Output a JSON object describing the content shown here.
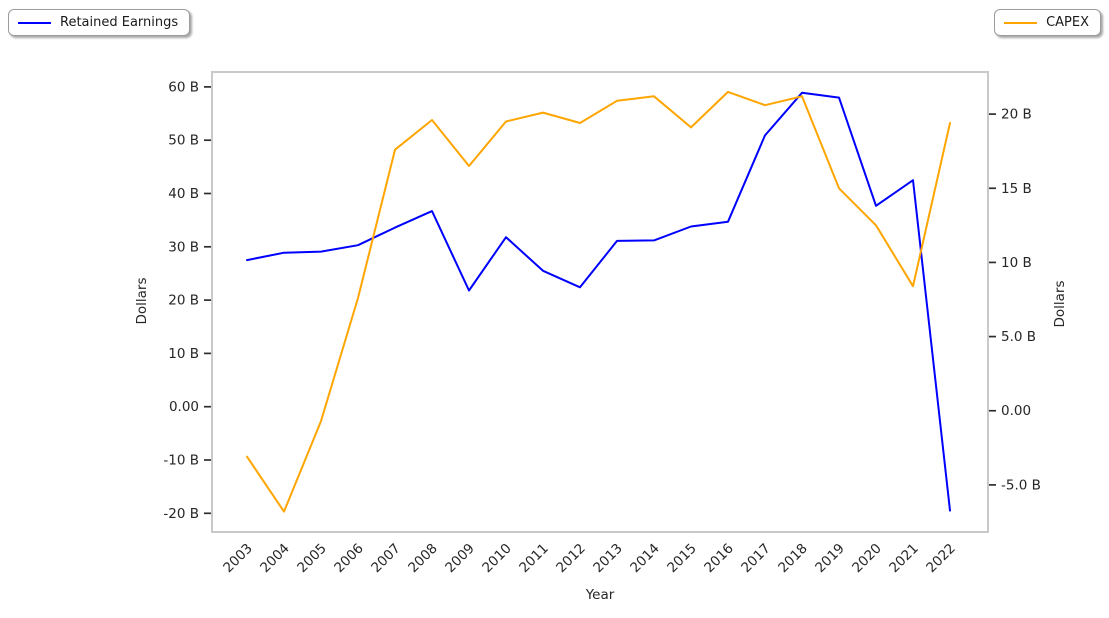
{
  "legend_left": {
    "label": "Retained Earnings",
    "color": "#0000ff"
  },
  "legend_right": {
    "label": "CAPEX",
    "color": "#ffa500"
  },
  "chart_data": {
    "type": "line",
    "title": "",
    "xlabel": "Year",
    "x": [
      2003,
      2004,
      2005,
      2006,
      2007,
      2008,
      2009,
      2010,
      2011,
      2012,
      2013,
      2014,
      2015,
      2016,
      2017,
      2018,
      2019,
      2020,
      2021,
      2022
    ],
    "x_tick_labels": [
      "2003",
      "2004",
      "2005",
      "2006",
      "2007",
      "2008",
      "2009",
      "2010",
      "2011",
      "2012",
      "2013",
      "2014",
      "2015",
      "2016",
      "2017",
      "2018",
      "2019",
      "2020",
      "2021",
      "2022"
    ],
    "left_axis": {
      "label": "Dollars",
      "tick_values": [
        60,
        50,
        40,
        30,
        20,
        10,
        0,
        -10,
        -20
      ],
      "tick_labels": [
        "60 B",
        "50 B",
        "40 B",
        "30 B",
        "20 B",
        "10 B",
        "0.00",
        "-10 B",
        "-20 B"
      ],
      "ylim_b": [
        -23.5,
        62.8
      ]
    },
    "right_axis": {
      "label": "Dollars",
      "tick_values": [
        20,
        15,
        10,
        5,
        0,
        -5
      ],
      "tick_labels": [
        "20 B",
        "15 B",
        "10 B",
        "5.0 B",
        "0.00",
        "-5.0 B"
      ],
      "ylim_b": [
        -8.2,
        22.8
      ]
    },
    "legend_position": {
      "left_series": "upper left outside",
      "right_series": "upper right outside"
    },
    "grid": false,
    "units": "billions of dollars",
    "series": [
      {
        "name": "Retained Earnings",
        "color": "#0000ff",
        "axis": "left",
        "values_b": [
          27.5,
          28.9,
          29.1,
          30.3,
          33.6,
          36.7,
          21.8,
          31.8,
          25.5,
          22.4,
          31.1,
          31.2,
          33.8,
          34.7,
          50.9,
          58.9,
          58.0,
          37.7,
          42.5,
          -19.5
        ]
      },
      {
        "name": "CAPEX",
        "color": "#ffa500",
        "axis": "right",
        "values_b": [
          -3.1,
          -6.8,
          -0.7,
          7.6,
          17.6,
          19.6,
          16.5,
          19.5,
          20.1,
          19.4,
          20.9,
          21.2,
          19.1,
          21.5,
          20.6,
          21.2,
          15.0,
          12.5,
          8.4,
          19.4
        ]
      }
    ]
  }
}
